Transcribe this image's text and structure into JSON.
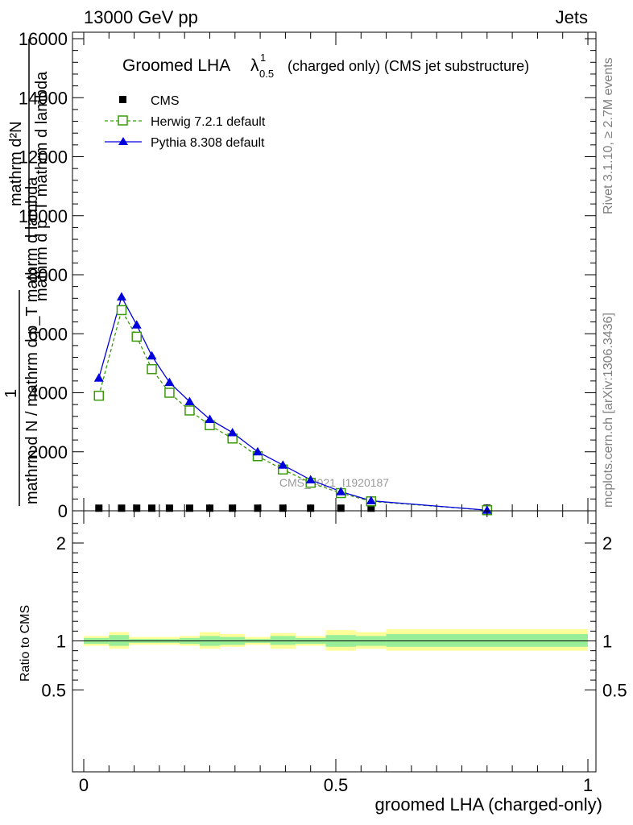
{
  "header": {
    "left": "13000 GeV pp",
    "right": "Jets"
  },
  "title_main": "Groomed LHA",
  "title_lambda": "λ",
  "title_sup": "1",
  "title_sub": "0.5",
  "title_rest": "(charged only) (CMS jet substructure)",
  "side_rivet": "Rivet 3.1.10, ≥ 2.7M events",
  "side_mcplots": "mcplots.cern.ch [arXiv:1306.3436]",
  "watermark": "CMS_2021_I1920187",
  "ylabel_frac_num": "1",
  "ylabel_upper_num": "mathrm d²N",
  "ylabel_upper_den": "mathrm d p_T mathrm d lambda",
  "ylabel_lower_den": "mathrm d N / mathrm d p_T mathrm d lambda",
  "ratio_ylabel": "Ratio to CMS",
  "xlabel": "groomed LHA (charged-only)",
  "colors": {
    "herwig": "#3a9a0a",
    "pythia": "#0000dd",
    "cms": "#000000",
    "band_outer": "#ffff99",
    "band_inner": "#99ee99"
  },
  "chart_data": [
    {
      "type": "line",
      "ylim": [
        0,
        16300
      ],
      "xlim": [
        -0.02,
        1.0
      ],
      "yticks": [
        0,
        2000,
        4000,
        6000,
        8000,
        10000,
        12000,
        14000,
        16000
      ],
      "ytick_labels": [
        "0",
        "2000",
        "4000",
        "6000",
        "8000",
        "10000",
        "12000",
        "14000",
        "16000"
      ],
      "legend_position": "top-left",
      "series": [
        {
          "name": "CMS",
          "marker": "square",
          "x": [
            0.03,
            0.075,
            0.105,
            0.135,
            0.17,
            0.21,
            0.25,
            0.295,
            0.345,
            0.395,
            0.45,
            0.51,
            0.57,
            0.8
          ],
          "y": [
            20,
            20,
            20,
            20,
            20,
            20,
            20,
            20,
            20,
            20,
            20,
            20,
            20,
            20
          ]
        },
        {
          "name": "Herwig 7.2.1 default",
          "marker": "open-square",
          "x": [
            0.03,
            0.075,
            0.105,
            0.135,
            0.17,
            0.21,
            0.25,
            0.295,
            0.345,
            0.395,
            0.45,
            0.51,
            0.57,
            0.8
          ],
          "y": [
            3900,
            6800,
            5900,
            4800,
            4000,
            3400,
            2900,
            2450,
            1850,
            1400,
            950,
            600,
            320,
            20
          ]
        },
        {
          "name": "Pythia 8.308 default",
          "marker": "filled-triangle",
          "x": [
            0.03,
            0.075,
            0.105,
            0.135,
            0.17,
            0.21,
            0.25,
            0.295,
            0.345,
            0.395,
            0.45,
            0.51,
            0.57,
            0.8
          ],
          "y": [
            4500,
            7250,
            6300,
            5250,
            4350,
            3700,
            3100,
            2650,
            2000,
            1550,
            1050,
            650,
            340,
            20
          ]
        }
      ]
    },
    {
      "type": "area",
      "ylim": [
        0.4,
        2.3
      ],
      "xlim": [
        -0.02,
        1.0
      ],
      "yticks": [
        0.5,
        1,
        2
      ],
      "ytick_labels": [
        "0.5",
        "1",
        "2"
      ],
      "xticks": [
        0,
        0.5,
        1
      ],
      "xtick_labels": [
        "0",
        "0.5",
        "1"
      ],
      "bins": [
        0.0,
        0.05,
        0.09,
        0.12,
        0.15,
        0.19,
        0.23,
        0.27,
        0.32,
        0.37,
        0.42,
        0.48,
        0.54,
        0.6,
        1.0
      ],
      "inner_band": [
        [
          0.97,
          1.03
        ],
        [
          0.95,
          1.06
        ],
        [
          0.98,
          1.02
        ],
        [
          0.98,
          1.02
        ],
        [
          0.98,
          1.02
        ],
        [
          0.97,
          1.03
        ],
        [
          0.95,
          1.05
        ],
        [
          0.96,
          1.04
        ],
        [
          0.98,
          1.02
        ],
        [
          0.96,
          1.05
        ],
        [
          0.97,
          1.03
        ],
        [
          0.94,
          1.06
        ],
        [
          0.95,
          1.05
        ],
        [
          0.94,
          1.07
        ]
      ],
      "outer_band": [
        [
          0.95,
          1.05
        ],
        [
          0.92,
          1.09
        ],
        [
          0.96,
          1.04
        ],
        [
          0.96,
          1.04
        ],
        [
          0.96,
          1.04
        ],
        [
          0.95,
          1.05
        ],
        [
          0.92,
          1.09
        ],
        [
          0.94,
          1.07
        ],
        [
          0.96,
          1.04
        ],
        [
          0.92,
          1.08
        ],
        [
          0.95,
          1.05
        ],
        [
          0.9,
          1.11
        ],
        [
          0.92,
          1.09
        ],
        [
          0.9,
          1.12
        ]
      ],
      "reference": 1
    }
  ]
}
